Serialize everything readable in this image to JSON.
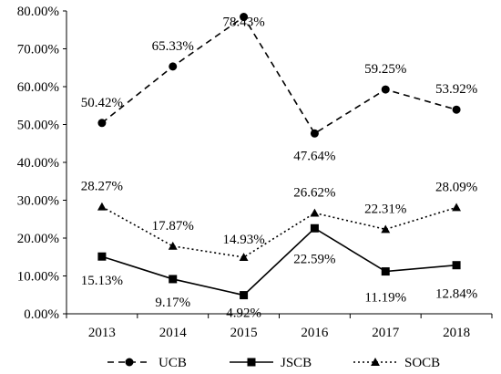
{
  "chart_data": {
    "type": "line",
    "title": "",
    "xlabel": "",
    "ylabel": "",
    "categories": [
      "2013",
      "2014",
      "2015",
      "2016",
      "2017",
      "2018"
    ],
    "ylim": [
      0,
      80
    ],
    "yticks": [
      "0.00%",
      "10.00%",
      "20.00%",
      "30.00%",
      "40.00%",
      "50.00%",
      "60.00%",
      "70.00%",
      "80.00%"
    ],
    "grid": false,
    "legend_position": "bottom",
    "series": [
      {
        "name": "UCB",
        "values": [
          50.42,
          65.33,
          78.43,
          47.64,
          59.25,
          53.92
        ],
        "labels": [
          "50.42%",
          "65.33%",
          "78.43%",
          "47.64%",
          "59.25%",
          "53.92%"
        ],
        "line_style": "dashed",
        "marker": "circle",
        "color": "#000000"
      },
      {
        "name": "JSCB",
        "values": [
          15.13,
          9.17,
          4.92,
          22.59,
          11.19,
          12.84
        ],
        "labels": [
          "15.13%",
          "9.17%",
          "4.92%",
          "22.59%",
          "11.19%",
          "12.84%"
        ],
        "line_style": "solid",
        "marker": "square",
        "color": "#000000"
      },
      {
        "name": "SOCB",
        "values": [
          28.27,
          17.87,
          14.93,
          26.62,
          22.31,
          28.09
        ],
        "labels": [
          "28.27%",
          "17.87%",
          "14.93%",
          "26.62%",
          "22.31%",
          "28.09%"
        ],
        "line_style": "dotted",
        "marker": "triangle",
        "color": "#000000"
      }
    ]
  }
}
